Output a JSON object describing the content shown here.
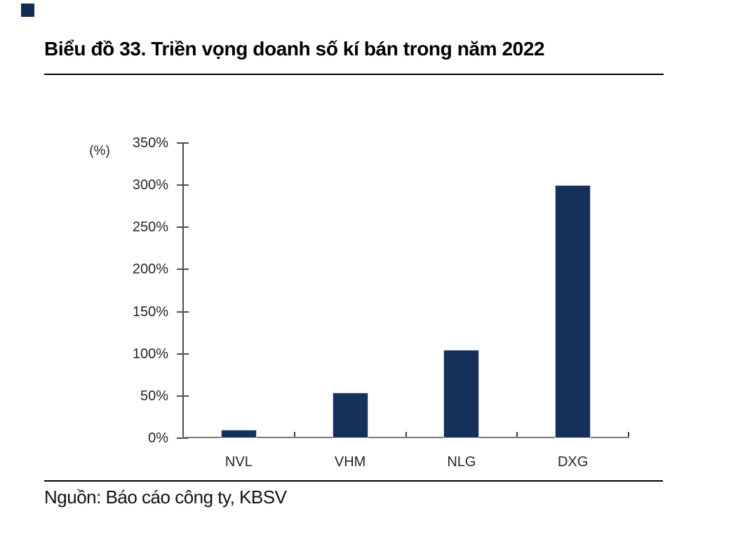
{
  "page": {
    "title": "Biểu đồ 33. Triền vọng doanh số kí bán trong năm 2022",
    "source": "Nguồn: Báo cáo công ty, KBSV"
  },
  "chart_data": {
    "type": "bar",
    "title": "Biểu đồ 33. Triền vọng doanh số kí bán trong năm 2022",
    "unit_label": "(%)",
    "categories": [
      "NVL",
      "VHM",
      "NLG",
      "DXG"
    ],
    "values": [
      10,
      54,
      105,
      300
    ],
    "xlabel": "",
    "ylabel": "(%)",
    "ylim": [
      0,
      350
    ],
    "ytick_step": 50,
    "yticks": [
      0,
      50,
      100,
      150,
      200,
      250,
      300,
      350
    ],
    "ytick_labels": [
      "0%",
      "50%",
      "100%",
      "150%",
      "200%",
      "250%",
      "300%",
      "350%"
    ],
    "grid": false,
    "legend": "none",
    "source": "Nguồn: Báo cáo công ty, KBSV"
  },
  "colors": {
    "bar": "#16305C",
    "corner_square": "#152C52",
    "axis": "#4d4d4d",
    "baseline": "#7a7a7a",
    "rule": "#000000",
    "text": "#262626"
  }
}
